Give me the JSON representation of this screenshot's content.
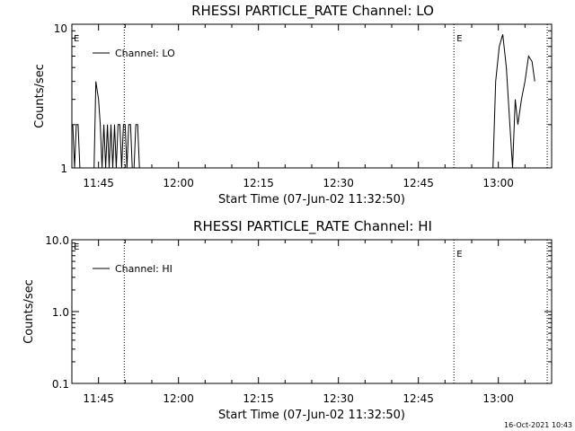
{
  "chart_data": [
    {
      "type": "line",
      "title": "RHESSI PARTICLE_RATE Channel: LO",
      "xlabel": "Start Time (07-Jun-02 11:32:50)",
      "ylabel": "Counts/sec",
      "y_scale": "log",
      "ylim": [
        1,
        10
      ],
      "y_ticks": [
        "1",
        "10"
      ],
      "x_ticks": [
        "11:45",
        "12:00",
        "12:15",
        "12:30",
        "12:45",
        "13:00"
      ],
      "xlim": [
        "11:40",
        "13:10"
      ],
      "legend": "top-left",
      "series": [
        {
          "name": "Channel: LO",
          "points": [
            [
              "11:40:10",
              2
            ],
            [
              "11:40:30",
              1
            ],
            [
              "11:40:50",
              2
            ],
            [
              "11:41:10",
              2
            ],
            [
              "11:41:30",
              1
            ],
            [
              "11:44:10",
              1
            ],
            [
              "11:44:30",
              4
            ],
            [
              "11:45:00",
              3
            ],
            [
              "11:45:20",
              2
            ],
            [
              "11:45:40",
              1
            ],
            [
              "11:46:00",
              2
            ],
            [
              "11:46:20",
              1
            ],
            [
              "11:46:40",
              2
            ],
            [
              "11:47:00",
              1
            ],
            [
              "11:47:20",
              2
            ],
            [
              "11:47:40",
              1
            ],
            [
              "11:48:00",
              2
            ],
            [
              "11:48:20",
              1
            ],
            [
              "11:48:40",
              2
            ],
            [
              "11:49:00",
              2
            ],
            [
              "11:49:20",
              1
            ],
            [
              "11:49:40",
              2
            ],
            [
              "11:50:00",
              2
            ],
            [
              "11:50:20",
              1
            ],
            [
              "11:50:40",
              2
            ],
            [
              "11:51:00",
              2
            ],
            [
              "11:51:20",
              1
            ],
            [
              "11:51:40",
              1
            ],
            [
              "11:52:00",
              2
            ],
            [
              "11:52:20",
              2
            ],
            [
              "11:52:40",
              1
            ],
            [
              "12:59:00",
              1
            ],
            [
              "12:59:30",
              4
            ],
            [
              "13:00:10",
              7
            ],
            [
              "13:00:50",
              8.5
            ],
            [
              "13:01:30",
              5
            ],
            [
              "13:02:10",
              2
            ],
            [
              "13:02:40",
              1
            ],
            [
              "13:03:10",
              3
            ],
            [
              "13:03:40",
              2
            ],
            [
              "13:04:20",
              3
            ],
            [
              "13:05:00",
              4
            ],
            [
              "13:05:40",
              6
            ],
            [
              "13:06:20",
              5.5
            ],
            [
              "13:06:50",
              4
            ]
          ]
        }
      ],
      "markers": [
        {
          "label": "",
          "time": "11:49:50"
        },
        {
          "label": "E",
          "time": "12:51:40"
        },
        {
          "label": "",
          "time": "13:09:10"
        }
      ],
      "corner_marker": "E"
    },
    {
      "type": "line",
      "title": "RHESSI PARTICLE_RATE Channel: HI",
      "xlabel": "Start Time (07-Jun-02 11:32:50)",
      "ylabel": "Counts/sec",
      "y_scale": "log",
      "ylim": [
        0.1,
        10
      ],
      "y_ticks": [
        "0.1",
        "1.0",
        "10.0"
      ],
      "x_ticks": [
        "11:45",
        "12:00",
        "12:15",
        "12:30",
        "12:45",
        "13:00"
      ],
      "xlim": [
        "11:40",
        "13:10"
      ],
      "legend": "top-left",
      "series": [
        {
          "name": "Channel: HI",
          "points": []
        }
      ],
      "markers": [
        {
          "label": "",
          "time": "11:49:50"
        },
        {
          "label": "E",
          "time": "12:51:40"
        },
        {
          "label": "",
          "time": "13:09:10"
        }
      ],
      "corner_marker": "E"
    }
  ],
  "timestamp": "16-Oct-2021 10:43"
}
